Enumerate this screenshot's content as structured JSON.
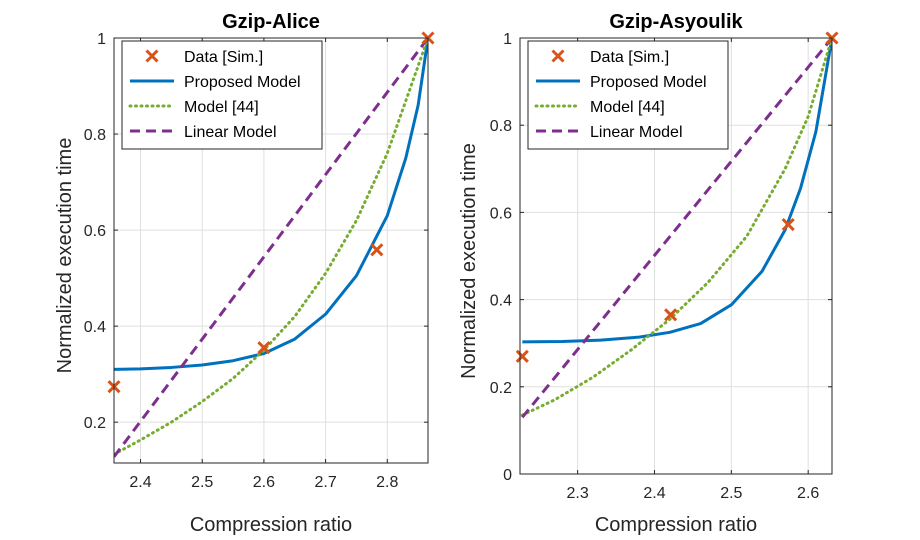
{
  "chart_data": [
    {
      "type": "line",
      "title": "Gzip-Alice",
      "xlabel": "Compression ratio",
      "ylabel": "Normalized execution time",
      "xlim": [
        2.357,
        2.866
      ],
      "ylim": [
        0.115,
        1.0
      ],
      "xticks": [
        2.4,
        2.5,
        2.6,
        2.7,
        2.8
      ],
      "xtick_labels": [
        "2.4",
        "2.5",
        "2.6",
        "2.7",
        "2.8"
      ],
      "yticks": [
        0.2,
        0.4,
        0.6,
        0.8,
        1.0
      ],
      "ytick_labels": [
        "0.2",
        "0.4",
        "0.6",
        "0.8",
        "1"
      ],
      "grid": true,
      "legend_position": "top-left",
      "series": [
        {
          "name": "Data [Sim.]",
          "kind": "markers",
          "color": "#D95319",
          "x": [
            2.357,
            2.6,
            2.783,
            2.866
          ],
          "y": [
            0.274,
            0.355,
            0.559,
            1.0
          ]
        },
        {
          "name": "Proposed Model",
          "kind": "line",
          "style": "solid",
          "color": "#0072BD",
          "x": [
            2.357,
            2.4,
            2.45,
            2.5,
            2.55,
            2.6,
            2.65,
            2.7,
            2.75,
            2.8,
            2.83,
            2.85,
            2.866
          ],
          "y": [
            0.31,
            0.311,
            0.314,
            0.319,
            0.328,
            0.343,
            0.373,
            0.425,
            0.505,
            0.63,
            0.75,
            0.86,
            1.0
          ]
        },
        {
          "name": "Model [44]",
          "kind": "line",
          "style": "dotted",
          "color": "#77AC30",
          "x": [
            2.357,
            2.4,
            2.45,
            2.5,
            2.55,
            2.6,
            2.65,
            2.7,
            2.75,
            2.8,
            2.866
          ],
          "y": [
            0.133,
            0.163,
            0.2,
            0.243,
            0.291,
            0.35,
            0.42,
            0.51,
            0.62,
            0.76,
            1.0
          ]
        },
        {
          "name": "Linear Model",
          "kind": "line",
          "style": "dashed",
          "color": "#7E2F8E",
          "x": [
            2.357,
            2.866
          ],
          "y": [
            0.128,
            1.0
          ]
        }
      ]
    },
    {
      "type": "line",
      "title": "Gzip-Asyoulik",
      "xlabel": "Compression ratio",
      "ylabel": "Normalized execution time",
      "xlim": [
        2.225,
        2.631
      ],
      "ylim": [
        0.0,
        1.0
      ],
      "xticks": [
        2.3,
        2.4,
        2.5,
        2.6
      ],
      "xtick_labels": [
        "2.3",
        "2.4",
        "2.5",
        "2.6"
      ],
      "yticks": [
        0,
        0.2,
        0.4,
        0.6,
        0.8,
        1.0
      ],
      "ytick_labels": [
        "0",
        "0.2",
        "0.4",
        "0.6",
        "0.8",
        "1"
      ],
      "grid": true,
      "legend_position": "top-left",
      "series": [
        {
          "name": "Data [Sim.]",
          "kind": "markers",
          "color": "#D95319",
          "x": [
            2.228,
            2.421,
            2.574,
            2.631
          ],
          "y": [
            0.27,
            0.365,
            0.572,
            1.0
          ]
        },
        {
          "name": "Proposed Model",
          "kind": "line",
          "style": "solid",
          "color": "#0072BD",
          "x": [
            2.228,
            2.28,
            2.33,
            2.38,
            2.42,
            2.46,
            2.5,
            2.54,
            2.57,
            2.59,
            2.61,
            2.631
          ],
          "y": [
            0.303,
            0.304,
            0.307,
            0.314,
            0.325,
            0.345,
            0.388,
            0.465,
            0.56,
            0.655,
            0.785,
            1.0
          ]
        },
        {
          "name": "Model [44]",
          "kind": "line",
          "style": "dotted",
          "color": "#77AC30",
          "x": [
            2.228,
            2.27,
            2.32,
            2.37,
            2.42,
            2.47,
            2.52,
            2.57,
            2.6,
            2.631
          ],
          "y": [
            0.135,
            0.17,
            0.222,
            0.285,
            0.355,
            0.44,
            0.545,
            0.7,
            0.82,
            1.0
          ]
        },
        {
          "name": "Linear Model",
          "kind": "line",
          "style": "dashed",
          "color": "#7E2F8E",
          "x": [
            2.228,
            2.631
          ],
          "y": [
            0.13,
            1.0
          ]
        }
      ]
    }
  ]
}
